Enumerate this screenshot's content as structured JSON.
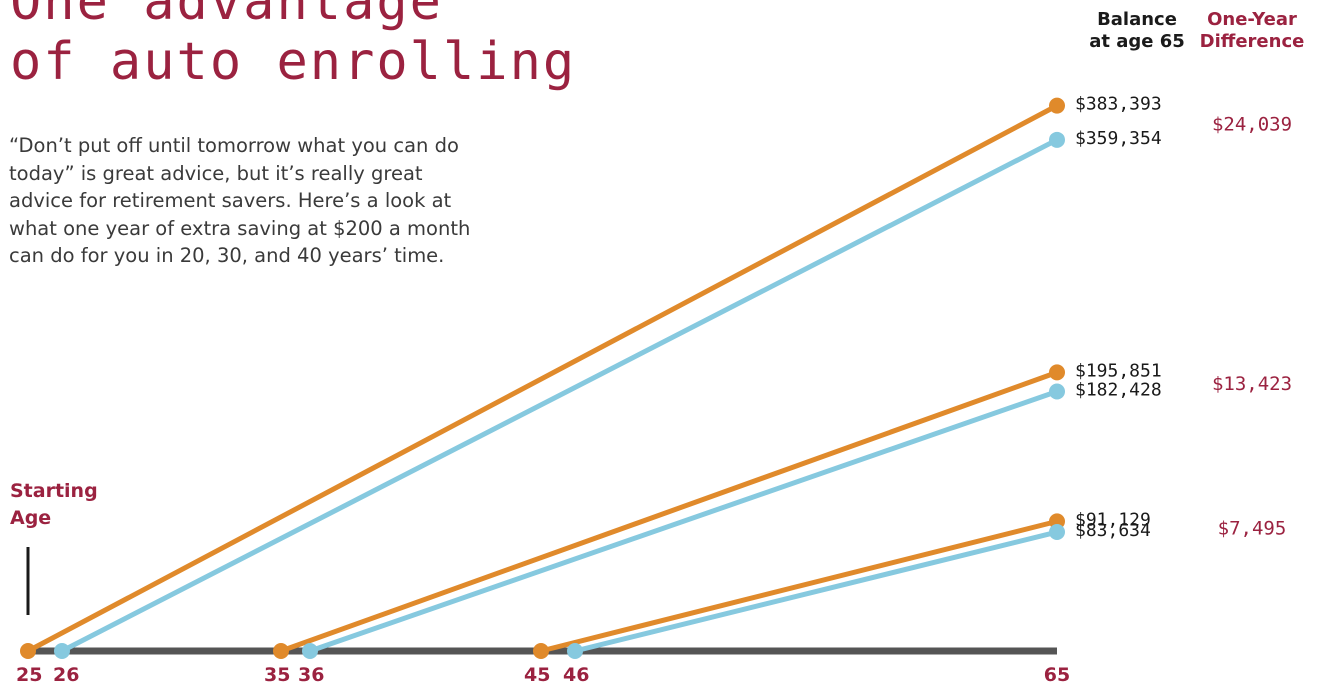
{
  "title_lines": [
    "One advantage",
    "of auto enrolling"
  ],
  "intro": "“Don’t put off until tomorrow what you can do today” is great advice, but it’s really great advice for retirement savers. Here’s a look at what one year of extra saving at $200 a month can do for you in 20, 30, and 40 years’ time.",
  "headers": {
    "balance": [
      "Balance",
      "at age 65"
    ],
    "difference": [
      "One-Year",
      "Difference"
    ]
  },
  "starting_age_label": [
    "Starting",
    "Age"
  ],
  "colors": {
    "earlier_start": "#e08a2b",
    "later_start": "#86c9df",
    "axis": "#555555",
    "accent": "#9b2240",
    "text": "#1a1a1a"
  },
  "chart_data": {
    "type": "line",
    "x_axis": {
      "ticks": [
        25,
        26,
        35,
        36,
        45,
        46,
        65
      ],
      "tick_labels": [
        "25",
        "26",
        "35",
        "36",
        "45",
        "46",
        "65"
      ]
    },
    "ylim": [
      0,
      400000
    ],
    "series": [
      {
        "start_age": 25,
        "end_age": 65,
        "balance": 383393,
        "label": "$383,393",
        "color": "#e08a2b"
      },
      {
        "start_age": 26,
        "end_age": 65,
        "balance": 359354,
        "label": "$359,354",
        "color": "#86c9df"
      },
      {
        "start_age": 35,
        "end_age": 65,
        "balance": 195851,
        "label": "$195,851",
        "color": "#e08a2b"
      },
      {
        "start_age": 36,
        "end_age": 65,
        "balance": 182428,
        "label": "$182,428",
        "color": "#86c9df"
      },
      {
        "start_age": 45,
        "end_age": 65,
        "balance": 91129,
        "label": "$91,129",
        "color": "#e08a2b"
      },
      {
        "start_age": 46,
        "end_age": 65,
        "balance": 83634,
        "label": "$83,634",
        "color": "#86c9df"
      }
    ],
    "differences": [
      {
        "value": 24039,
        "label": "$24,039"
      },
      {
        "value": 13423,
        "label": "$13,423"
      },
      {
        "value": 7495,
        "label": "$7,495"
      }
    ]
  }
}
